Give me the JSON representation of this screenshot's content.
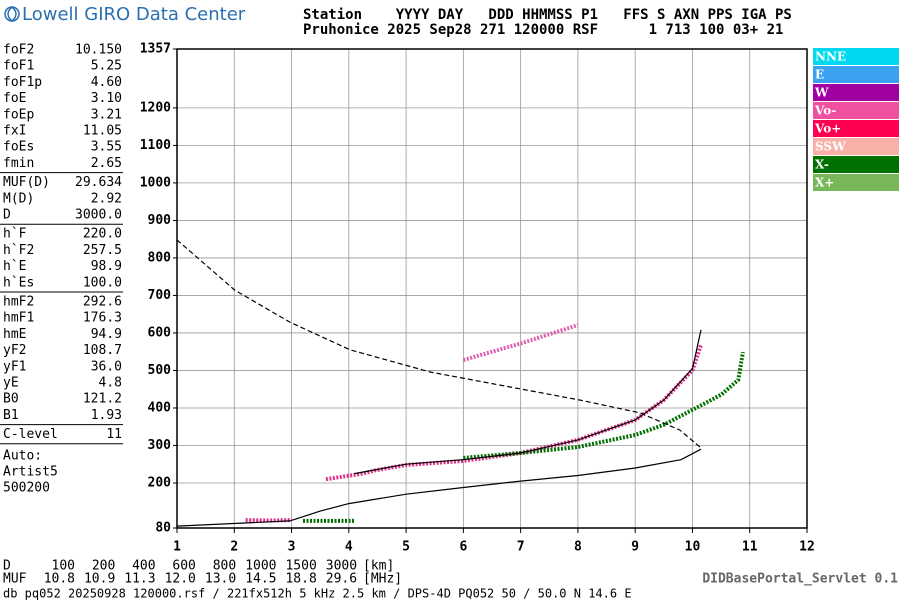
{
  "header": {
    "logo": "Lowell GIRO Data Center",
    "line1": "Station    YYYY DAY   DDD HHMMSS P1   FFS S AXN PPS IGA PS",
    "line2": "Pruhonice 2025 Sep28 271 120000 RSF      1 713 100 03+ 21"
  },
  "parameters": [
    [
      [
        "foF2",
        "10.150"
      ],
      [
        "foF1",
        "5.25"
      ],
      [
        "foF1p",
        "4.60"
      ],
      [
        "foE",
        "3.10"
      ],
      [
        "foEp",
        "3.21"
      ],
      [
        "fxI",
        "11.05"
      ],
      [
        "foEs",
        "3.55"
      ],
      [
        "fmin",
        "2.65"
      ]
    ],
    [
      [
        "MUF(D)",
        "29.634"
      ],
      [
        "M(D)",
        "2.92"
      ],
      [
        "D",
        "3000.0"
      ]
    ],
    [
      [
        "h`F",
        "220.0"
      ],
      [
        "h`F2",
        "257.5"
      ],
      [
        "h`E",
        "98.9"
      ],
      [
        "h`Es",
        "100.0"
      ]
    ],
    [
      [
        "hmF2",
        "292.6"
      ],
      [
        "hmF1",
        "176.3"
      ],
      [
        "hmE",
        "94.9"
      ],
      [
        "yF2",
        "108.7"
      ],
      [
        "yF1",
        "36.0"
      ],
      [
        "yE",
        "4.8"
      ],
      [
        "B0",
        "121.2"
      ],
      [
        "B1",
        "1.93"
      ]
    ],
    [
      [
        "C-level",
        "11"
      ]
    ]
  ],
  "autoscaling": [
    "Auto:",
    "Artist5",
    "500200"
  ],
  "muf_table": {
    "d_label": "D",
    "d_values": [
      "100",
      "200",
      "400",
      "600",
      "800",
      "1000",
      "1500",
      "3000"
    ],
    "d_unit": "[km]",
    "muf_label": "MUF",
    "muf_values": [
      "10.8",
      "10.9",
      "11.3",
      "12.0",
      "13.0",
      "14.5",
      "18.8",
      "29.6"
    ],
    "muf_unit": "[MHz]"
  },
  "servlet": "DIDBasePortal_Servlet 0.1",
  "footer": "db pq052 20250928 120000.rsf / 221fx512h 5 kHz 2.5 km / DPS-4D PQ052 50 / 50.0 N 14.6 E",
  "chart_data": {
    "type": "ionogram",
    "xlim": [
      1,
      12
    ],
    "xticks": [
      1,
      2,
      3,
      4,
      5,
      6,
      7,
      8,
      9,
      10,
      11,
      12
    ],
    "ylim": [
      80,
      1357
    ],
    "yticks": [
      80,
      200,
      300,
      400,
      500,
      600,
      700,
      800,
      900,
      1000,
      1100,
      1200,
      1357
    ],
    "grid": true,
    "legend": [
      {
        "name": "NNE",
        "color": "#00d8f0"
      },
      {
        "name": "E",
        "color": "#3aa0f0"
      },
      {
        "name": "W",
        "color": "#a000a0"
      },
      {
        "name": "Vo-",
        "color": "#f050a0"
      },
      {
        "name": "Vo+",
        "color": "#ff0050"
      },
      {
        "name": "SSW",
        "color": "#f8b0a8"
      },
      {
        "name": "X-",
        "color": "#007000"
      },
      {
        "name": "X+",
        "color": "#78b858"
      }
    ],
    "traces": [
      {
        "color": "#e0308c",
        "style": "dots",
        "x": [
          3.6,
          4.2,
          4.5,
          5.0,
          6.0,
          7.0,
          8.0,
          9.0,
          9.5,
          10.0,
          10.15
        ],
        "y": [
          210,
          224,
          235,
          248,
          259,
          280,
          315,
          368,
          421,
          501,
          568
        ]
      },
      {
        "color": "#e0308c",
        "style": "dots",
        "x": [
          2.2,
          2.6,
          3.0
        ],
        "y": [
          101,
          100,
          101
        ]
      },
      {
        "color": "#e060b0",
        "style": "dots",
        "x": [
          6.0,
          7.0,
          8.0
        ],
        "y": [
          528,
          572,
          621
        ]
      },
      {
        "color": "#007000",
        "style": "dots",
        "x": [
          6.0,
          7.0,
          8.0,
          9.0,
          9.5,
          10.0,
          10.5,
          10.8,
          10.88
        ],
        "y": [
          267,
          280,
          296,
          328,
          355,
          395,
          435,
          475,
          549
        ]
      },
      {
        "color": "#007000",
        "style": "dots",
        "x": [
          3.2,
          3.6,
          4.1
        ],
        "y": [
          99,
          99,
          99
        ]
      },
      {
        "color": "#000000",
        "style": "solid",
        "x": [
          1.0,
          2.97,
          3.1,
          3.5,
          4.0,
          5.0,
          6.0,
          7.0,
          8.0,
          9.0,
          9.8,
          10.15
        ],
        "y": [
          85,
          99,
          105,
          125,
          145,
          170,
          188,
          205,
          220,
          240,
          262,
          290
        ]
      },
      {
        "color": "#000000",
        "style": "solid",
        "x": [
          4.1,
          5.0,
          6.0,
          7.0,
          8.0,
          9.0,
          9.5,
          10.0,
          10.15
        ],
        "y": [
          225,
          250,
          262,
          280,
          315,
          368,
          421,
          505,
          608
        ]
      },
      {
        "color": "#000000",
        "style": "dashed",
        "x": [
          1.0,
          2.01,
          2.97,
          4.02,
          5.42,
          6.64,
          8.04,
          9.08,
          9.78,
          10.13
        ],
        "y": [
          848,
          714,
          629,
          555,
          496,
          461,
          421,
          387,
          341,
          296
        ]
      }
    ]
  }
}
